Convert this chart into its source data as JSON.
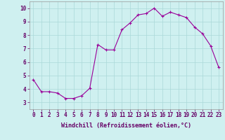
{
  "x": [
    0,
    1,
    2,
    3,
    4,
    5,
    6,
    7,
    8,
    9,
    10,
    11,
    12,
    13,
    14,
    15,
    16,
    17,
    18,
    19,
    20,
    21,
    22,
    23
  ],
  "y": [
    4.7,
    3.8,
    3.8,
    3.7,
    3.3,
    3.3,
    3.5,
    4.05,
    7.3,
    6.9,
    6.9,
    8.4,
    8.9,
    9.5,
    9.6,
    10.0,
    9.4,
    9.7,
    9.5,
    9.3,
    8.6,
    8.1,
    7.2,
    5.6
  ],
  "line_color": "#990099",
  "marker": "+",
  "marker_size": 3,
  "marker_linewidth": 0.8,
  "line_width": 0.8,
  "bg_color": "#cff0f0",
  "grid_color": "#aad8d8",
  "xlabel": "Windchill (Refroidissement éolien,°C)",
  "xlim": [
    -0.5,
    23.5
  ],
  "ylim": [
    2.5,
    10.5
  ],
  "xticks": [
    0,
    1,
    2,
    3,
    4,
    5,
    6,
    7,
    8,
    9,
    10,
    11,
    12,
    13,
    14,
    15,
    16,
    17,
    18,
    19,
    20,
    21,
    22,
    23
  ],
  "yticks": [
    3,
    4,
    5,
    6,
    7,
    8,
    9,
    10
  ],
  "xlabel_fontsize": 6,
  "tick_fontsize": 5.5,
  "axis_label_color": "#660066",
  "tick_color": "#660066",
  "spine_color": "#999999"
}
